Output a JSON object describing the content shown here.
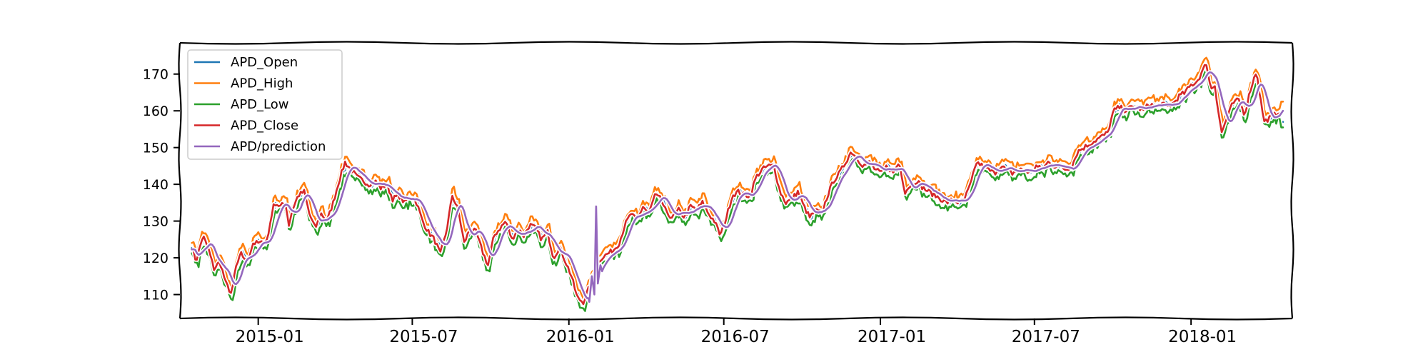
{
  "chart_data": {
    "type": "line",
    "title": "",
    "xlabel": "",
    "ylabel": "",
    "xlim": [
      "2014-10-01",
      "2018-04-30"
    ],
    "ylim": [
      103.5,
      178.5
    ],
    "x_ticks": [
      "2015-01",
      "2015-07",
      "2016-01",
      "2016-07",
      "2017-01",
      "2017-07",
      "2018-01"
    ],
    "y_ticks": [
      110,
      120,
      130,
      140,
      150,
      160,
      170
    ],
    "grid": false,
    "legend_position": "top-left",
    "style": "xkcd",
    "series": [
      {
        "name": "APD_Open",
        "color": "#1f77b4"
      },
      {
        "name": "APD_High",
        "color": "#ff7f0e"
      },
      {
        "name": "APD_Low",
        "color": "#2ca02c"
      },
      {
        "name": "APD_Close",
        "color": "#d62728"
      },
      {
        "name": "APD/prediction",
        "color": "#9467bd"
      }
    ],
    "close_keypoints": [
      [
        "2014-10-15",
        123
      ],
      [
        "2014-10-20",
        119
      ],
      [
        "2014-10-28",
        126
      ],
      [
        "2014-11-04",
        122
      ],
      [
        "2014-11-10",
        117
      ],
      [
        "2014-11-17",
        119
      ],
      [
        "2014-11-24",
        113
      ],
      [
        "2014-12-01",
        110
      ],
      [
        "2014-12-05",
        117
      ],
      [
        "2014-12-12",
        121
      ],
      [
        "2014-12-19",
        119
      ],
      [
        "2014-12-26",
        124
      ],
      [
        "2015-01-05",
        124
      ],
      [
        "2015-01-12",
        125
      ],
      [
        "2015-01-16",
        131
      ],
      [
        "2015-01-20",
        135
      ],
      [
        "2015-01-27",
        134
      ],
      [
        "2015-02-02",
        135
      ],
      [
        "2015-02-06",
        129
      ],
      [
        "2015-02-10",
        133
      ],
      [
        "2015-02-17",
        137
      ],
      [
        "2015-02-24",
        138
      ],
      [
        "2015-03-02",
        132
      ],
      [
        "2015-03-09",
        128
      ],
      [
        "2015-03-16",
        132
      ],
      [
        "2015-03-23",
        130
      ],
      [
        "2015-03-30",
        135
      ],
      [
        "2015-04-06",
        141
      ],
      [
        "2015-04-13",
        146
      ],
      [
        "2015-04-20",
        144
      ],
      [
        "2015-04-27",
        142
      ],
      [
        "2015-05-04",
        141
      ],
      [
        "2015-05-11",
        140
      ],
      [
        "2015-05-18",
        141
      ],
      [
        "2015-05-25",
        139
      ],
      [
        "2015-06-01",
        140
      ],
      [
        "2015-06-08",
        136
      ],
      [
        "2015-06-15",
        137
      ],
      [
        "2015-06-22",
        135
      ],
      [
        "2015-06-29",
        137
      ],
      [
        "2015-07-06",
        135
      ],
      [
        "2015-07-13",
        130
      ],
      [
        "2015-07-20",
        127
      ],
      [
        "2015-07-27",
        125
      ],
      [
        "2015-08-03",
        121
      ],
      [
        "2015-08-10",
        127
      ],
      [
        "2015-08-17",
        137
      ],
      [
        "2015-08-24",
        133
      ],
      [
        "2015-08-31",
        124
      ],
      [
        "2015-09-07",
        128
      ],
      [
        "2015-09-14",
        127
      ],
      [
        "2015-09-21",
        122
      ],
      [
        "2015-09-28",
        118
      ],
      [
        "2015-10-05",
        126
      ],
      [
        "2015-10-12",
        128
      ],
      [
        "2015-10-19",
        130
      ],
      [
        "2015-10-26",
        125
      ],
      [
        "2015-11-02",
        128
      ],
      [
        "2015-11-09",
        126
      ],
      [
        "2015-11-16",
        129
      ],
      [
        "2015-11-23",
        128
      ],
      [
        "2015-11-30",
        125
      ],
      [
        "2015-12-07",
        127
      ],
      [
        "2015-12-14",
        120
      ],
      [
        "2015-12-21",
        123
      ],
      [
        "2015-12-28",
        119
      ],
      [
        "2016-01-04",
        115
      ],
      [
        "2016-01-11",
        109
      ],
      [
        "2016-01-18",
        108
      ],
      [
        "2016-01-25",
        112
      ],
      [
        "2016-02-01",
        117
      ],
      [
        "2016-02-08",
        120
      ],
      [
        "2016-02-15",
        121
      ],
      [
        "2016-02-22",
        122
      ],
      [
        "2016-02-29",
        124
      ],
      [
        "2016-03-07",
        129
      ],
      [
        "2016-03-14",
        132
      ],
      [
        "2016-03-21",
        130
      ],
      [
        "2016-03-28",
        134
      ],
      [
        "2016-04-04",
        132
      ],
      [
        "2016-04-11",
        137
      ],
      [
        "2016-04-18",
        136
      ],
      [
        "2016-04-25",
        132
      ],
      [
        "2016-05-02",
        131
      ],
      [
        "2016-05-09",
        133
      ],
      [
        "2016-05-16",
        131
      ],
      [
        "2016-05-23",
        134
      ],
      [
        "2016-05-30",
        133
      ],
      [
        "2016-06-06",
        135
      ],
      [
        "2016-06-13",
        132
      ],
      [
        "2016-06-20",
        130
      ],
      [
        "2016-06-27",
        126
      ],
      [
        "2016-07-04",
        131
      ],
      [
        "2016-07-11",
        137
      ],
      [
        "2016-07-18",
        138
      ],
      [
        "2016-07-25",
        137
      ],
      [
        "2016-08-01",
        137
      ],
      [
        "2016-08-08",
        142
      ],
      [
        "2016-08-15",
        144
      ],
      [
        "2016-08-22",
        145
      ],
      [
        "2016-08-29",
        145
      ],
      [
        "2016-09-05",
        138
      ],
      [
        "2016-09-12",
        135
      ],
      [
        "2016-09-19",
        136
      ],
      [
        "2016-09-26",
        138
      ],
      [
        "2016-10-03",
        134
      ],
      [
        "2016-10-10",
        131
      ],
      [
        "2016-10-17",
        133
      ],
      [
        "2016-10-24",
        132
      ],
      [
        "2016-10-31",
        137
      ],
      [
        "2016-11-07",
        141
      ],
      [
        "2016-11-14",
        143
      ],
      [
        "2016-11-21",
        146
      ],
      [
        "2016-11-28",
        149
      ],
      [
        "2016-12-05",
        147
      ],
      [
        "2016-12-12",
        145
      ],
      [
        "2016-12-19",
        146
      ],
      [
        "2016-12-26",
        144
      ],
      [
        "2017-01-02",
        143
      ],
      [
        "2017-01-09",
        145
      ],
      [
        "2017-01-16",
        143
      ],
      [
        "2017-01-23",
        146
      ],
      [
        "2017-01-30",
        138
      ],
      [
        "2017-02-06",
        140
      ],
      [
        "2017-02-13",
        141
      ],
      [
        "2017-02-20",
        139
      ],
      [
        "2017-02-27",
        138
      ],
      [
        "2017-03-06",
        137
      ],
      [
        "2017-03-13",
        136
      ],
      [
        "2017-03-20",
        135
      ],
      [
        "2017-03-27",
        136
      ],
      [
        "2017-04-03",
        135
      ],
      [
        "2017-04-10",
        136
      ],
      [
        "2017-04-17",
        140
      ],
      [
        "2017-04-24",
        146
      ],
      [
        "2017-05-01",
        145
      ],
      [
        "2017-05-08",
        144
      ],
      [
        "2017-05-15",
        143
      ],
      [
        "2017-05-22",
        145
      ],
      [
        "2017-05-29",
        144
      ],
      [
        "2017-06-05",
        143
      ],
      [
        "2017-06-12",
        144
      ],
      [
        "2017-06-19",
        144
      ],
      [
        "2017-06-26",
        143
      ],
      [
        "2017-07-03",
        145
      ],
      [
        "2017-07-10",
        144
      ],
      [
        "2017-07-17",
        146
      ],
      [
        "2017-07-24",
        145
      ],
      [
        "2017-07-31",
        145
      ],
      [
        "2017-08-07",
        144
      ],
      [
        "2017-08-14",
        145
      ],
      [
        "2017-08-21",
        149
      ],
      [
        "2017-08-28",
        150
      ],
      [
        "2017-09-04",
        151
      ],
      [
        "2017-09-11",
        152
      ],
      [
        "2017-09-18",
        153
      ],
      [
        "2017-09-25",
        154
      ],
      [
        "2017-10-02",
        160
      ],
      [
        "2017-10-09",
        161
      ],
      [
        "2017-10-16",
        160
      ],
      [
        "2017-10-23",
        161
      ],
      [
        "2017-10-30",
        161
      ],
      [
        "2017-11-06",
        160
      ],
      [
        "2017-11-13",
        162
      ],
      [
        "2017-11-20",
        161
      ],
      [
        "2017-11-27",
        162
      ],
      [
        "2017-12-04",
        161
      ],
      [
        "2017-12-11",
        162
      ],
      [
        "2017-12-18",
        164
      ],
      [
        "2017-12-25",
        165
      ],
      [
        "2018-01-01",
        167
      ],
      [
        "2018-01-08",
        168
      ],
      [
        "2018-01-15",
        171
      ],
      [
        "2018-01-19",
        173
      ],
      [
        "2018-01-24",
        166
      ],
      [
        "2018-01-29",
        167
      ],
      [
        "2018-02-02",
        160
      ],
      [
        "2018-02-06",
        154
      ],
      [
        "2018-02-12",
        158
      ],
      [
        "2018-02-19",
        162
      ],
      [
        "2018-02-26",
        163
      ],
      [
        "2018-03-05",
        159
      ],
      [
        "2018-03-12",
        166
      ],
      [
        "2018-03-19",
        171
      ],
      [
        "2018-03-23",
        164
      ],
      [
        "2018-03-28",
        157
      ],
      [
        "2018-04-03",
        158
      ],
      [
        "2018-04-10",
        159
      ],
      [
        "2018-04-15",
        160
      ]
    ],
    "prediction_spike": [
      [
        "2016-01-25",
        108
      ],
      [
        "2016-01-28",
        115
      ],
      [
        "2016-01-31",
        110
      ],
      [
        "2016-02-02",
        134
      ],
      [
        "2016-02-04",
        113
      ],
      [
        "2016-02-07",
        118
      ]
    ],
    "end_values": {
      "APD_Open": 157,
      "APD_High": 162.5,
      "APD_Low": 155.5,
      "APD/prediction": 160
    }
  }
}
